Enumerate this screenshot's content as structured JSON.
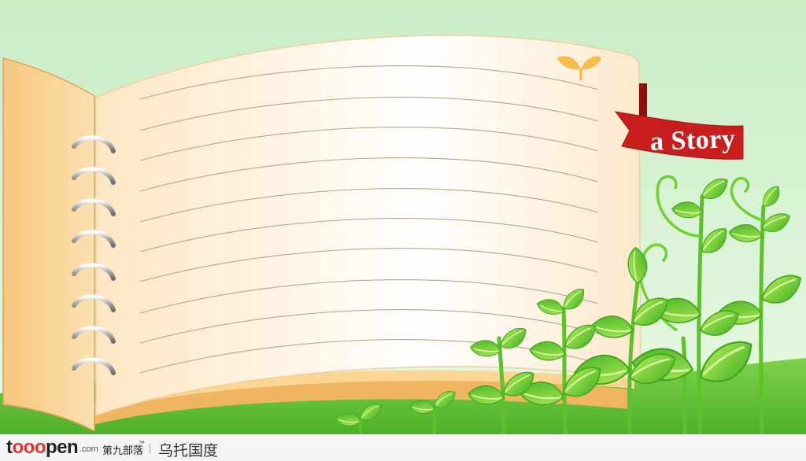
{
  "bookmark": {
    "label": "a Story"
  },
  "watermark": {
    "logo_parts": [
      "t",
      "ooo",
      "pen"
    ],
    "domain_suffix": ".com",
    "brand_cn": "第九部落",
    "trademark": "™",
    "author": "乌托国度"
  },
  "colors": {
    "sky": "#d4f0d0",
    "page": "#fff3df",
    "ribbon": "#c81e1e",
    "leaf": "#6ccf2c",
    "ring": "#9a9a9a"
  }
}
